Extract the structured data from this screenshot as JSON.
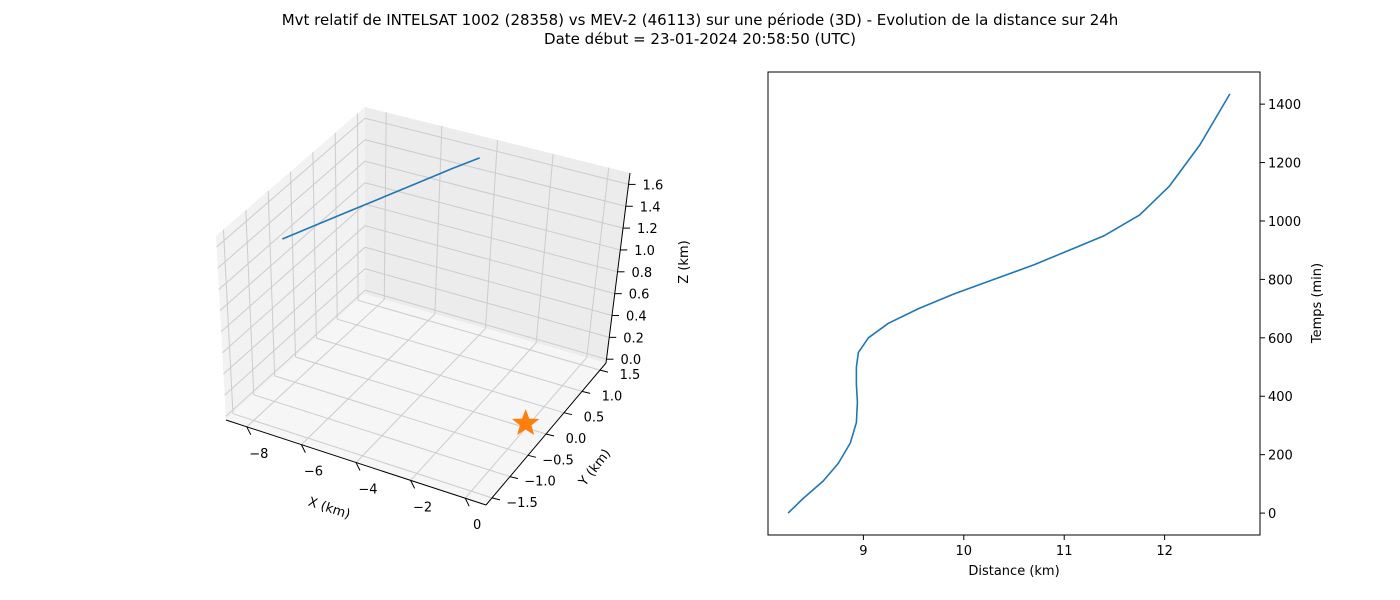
{
  "figure": {
    "title_line1": "Mvt relatif de INTELSAT 1002 (28358) vs MEV-2 (46113) sur une période (3D) - Evolution de la distance sur 24h",
    "title_line2": "Date début = 23-01-2024 20:58:50 (UTC)"
  },
  "colors": {
    "series": "#1f77b4",
    "marker": "#ff7f0e",
    "pane": "#f2f2f2",
    "grid": "#cccccc"
  },
  "chart_data": [
    {
      "type": "line",
      "projection": "3d",
      "xlabel": "X (km)",
      "ylabel": "Y (km)",
      "zlabel": "Z (km)",
      "xticks": [
        "−8",
        "−6",
        "−4",
        "−2",
        "0"
      ],
      "yticks": [
        "−1.5",
        "−1.0",
        "−0.5",
        "0.0",
        "0.5",
        "1.0",
        "1.5"
      ],
      "zticks": [
        "0.0",
        "0.2",
        "0.4",
        "0.6",
        "0.8",
        "1.0",
        "1.2",
        "1.4",
        "1.6"
      ],
      "grid": true,
      "series": [
        {
          "x": [
            -8.3,
            -7.6,
            -6.9,
            -6.2,
            -5.5,
            -4.8,
            -4.2
          ],
          "y": [
            -1.0,
            -0.6,
            -0.2,
            0.2,
            0.6,
            1.0,
            1.3
          ],
          "z": [
            1.4,
            1.43,
            1.46,
            1.49,
            1.52,
            1.55,
            1.58
          ]
        }
      ],
      "marker": {
        "symbol": "star",
        "x": 0.0,
        "y": 0.0,
        "z": 0.0
      }
    },
    {
      "type": "line",
      "xlabel": "Distance (km)",
      "ylabel": "Temps (min)",
      "xlim": [
        8.05,
        12.95
      ],
      "ylim": [
        -75,
        1510
      ],
      "xticks": [
        "9",
        "10",
        "11",
        "12"
      ],
      "yticks": [
        "0",
        "200",
        "400",
        "600",
        "800",
        "1000",
        "1200",
        "1400"
      ],
      "y_axis_side": "right",
      "grid": false,
      "series": [
        {
          "x": [
            8.25,
            8.4,
            8.6,
            8.75,
            8.87,
            8.93,
            8.94,
            8.93,
            8.93,
            8.95,
            9.05,
            9.25,
            9.55,
            9.9,
            10.3,
            10.7,
            11.05,
            11.4,
            11.75,
            12.05,
            12.35,
            12.65
          ],
          "y": [
            0,
            50,
            110,
            170,
            240,
            310,
            380,
            440,
            500,
            550,
            600,
            650,
            700,
            750,
            800,
            850,
            900,
            950,
            1020,
            1120,
            1260,
            1435
          ]
        }
      ]
    }
  ]
}
